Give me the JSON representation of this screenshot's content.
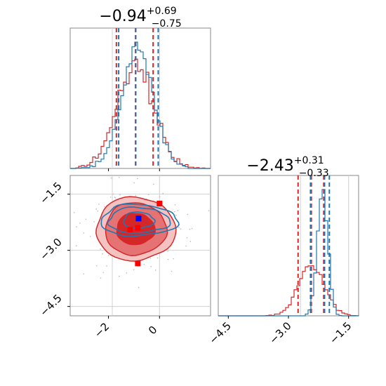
{
  "chart_data": {
    "type": "corner",
    "colors": {
      "red": "#d62728",
      "blue": "#1f77b4",
      "grid": "#d0d0d0",
      "marker_red": "#ff0000",
      "marker_blue": "#0000ff"
    },
    "panels": [
      {
        "id": "hist-param1",
        "type": "histogram",
        "xlim": [
          -3.5,
          2.0
        ],
        "title": {
          "main": "−0.94",
          "sup": "+0.69",
          "sub": "−0.75"
        },
        "quantile_lines": {
          "red": [
            -1.69,
            -0.94,
            -0.25
          ],
          "blue": [
            -1.6,
            -0.93,
            -0.05
          ]
        },
        "reference_lines": [
          -1.85,
          0.0
        ],
        "series": [
          {
            "color": "red",
            "mu": -0.94,
            "sigma": 0.72
          },
          {
            "color": "blue",
            "mu": -0.85,
            "sigma": 0.63
          }
        ]
      },
      {
        "id": "hist-param2",
        "type": "histogram",
        "xlim": [
          -4.75,
          -1.25
        ],
        "title": {
          "main": "−2.43",
          "sup": "+0.31",
          "sub": "−0.33"
        },
        "xticks": [
          "−4.5",
          "−3.0",
          "−1.5"
        ],
        "xtick_values": [
          -4.5,
          -3.0,
          -1.5
        ],
        "quantile_lines": {
          "red": [
            -2.76,
            -2.43,
            -2.12
          ],
          "blue": [
            -2.45,
            -2.1,
            -1.98
          ]
        },
        "reference_lines": [
          -2.7,
          -1.5
        ],
        "series": [
          {
            "color": "red",
            "mu": -2.43,
            "sigma": 0.33
          },
          {
            "color": "blue",
            "mu": -2.15,
            "sigma": 0.13
          }
        ]
      },
      {
        "id": "scatter-2d",
        "type": "contour",
        "xlim": [
          -3.5,
          2.0
        ],
        "ylim": [
          -4.75,
          -1.0
        ],
        "xticks": [
          "−2",
          "0"
        ],
        "xtick_values": [
          -2,
          0
        ],
        "yticks": [
          "−1.5",
          "−3.0",
          "−4.5"
        ],
        "ytick_values": [
          -1.5,
          -3.0,
          -4.5
        ],
        "reference_lines_x": [
          -1.85,
          0.0
        ],
        "reference_lines_y": [
          -1.5,
          -3.0,
          -4.5
        ],
        "red_contour": {
          "cx": -0.94,
          "cy": -2.43,
          "rx": [
            0.75,
            1.2,
            1.55
          ],
          "ry": [
            0.42,
            0.7,
            0.85
          ]
        },
        "blue_contour": {
          "cx": -0.82,
          "cy": -2.2,
          "rx": [
            0.6,
            1.2,
            1.5
          ],
          "ry": [
            0.22,
            0.34,
            0.42
          ]
        },
        "markers": [
          {
            "color": "marker_red",
            "x": 0.0,
            "y": -1.75
          },
          {
            "color": "marker_blue",
            "x": -0.82,
            "y": -2.15
          },
          {
            "color": "marker_red",
            "x": -1.15,
            "y": -2.45
          },
          {
            "color": "marker_red",
            "x": -0.85,
            "y": -2.4
          },
          {
            "color": "marker_red",
            "x": -0.85,
            "y": -3.35
          }
        ]
      }
    ]
  }
}
